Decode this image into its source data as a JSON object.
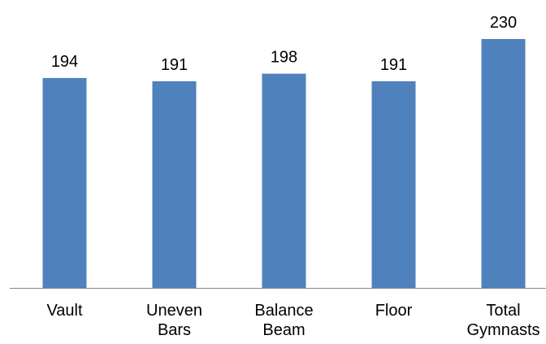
{
  "chart_data": {
    "type": "bar",
    "categories": [
      [
        "Vault"
      ],
      [
        "Uneven",
        "Bars"
      ],
      [
        "Balance",
        "Beam"
      ],
      [
        "Floor"
      ],
      [
        "Total",
        "Gymnasts"
      ]
    ],
    "values": [
      194,
      191,
      198,
      191,
      230
    ],
    "title": "",
    "xlabel": "",
    "ylabel": "",
    "ylim": [
      0,
      230
    ],
    "grid": false,
    "legend": "none",
    "colors": {
      "bar": "#4F81BD",
      "axis": "#868686"
    }
  }
}
